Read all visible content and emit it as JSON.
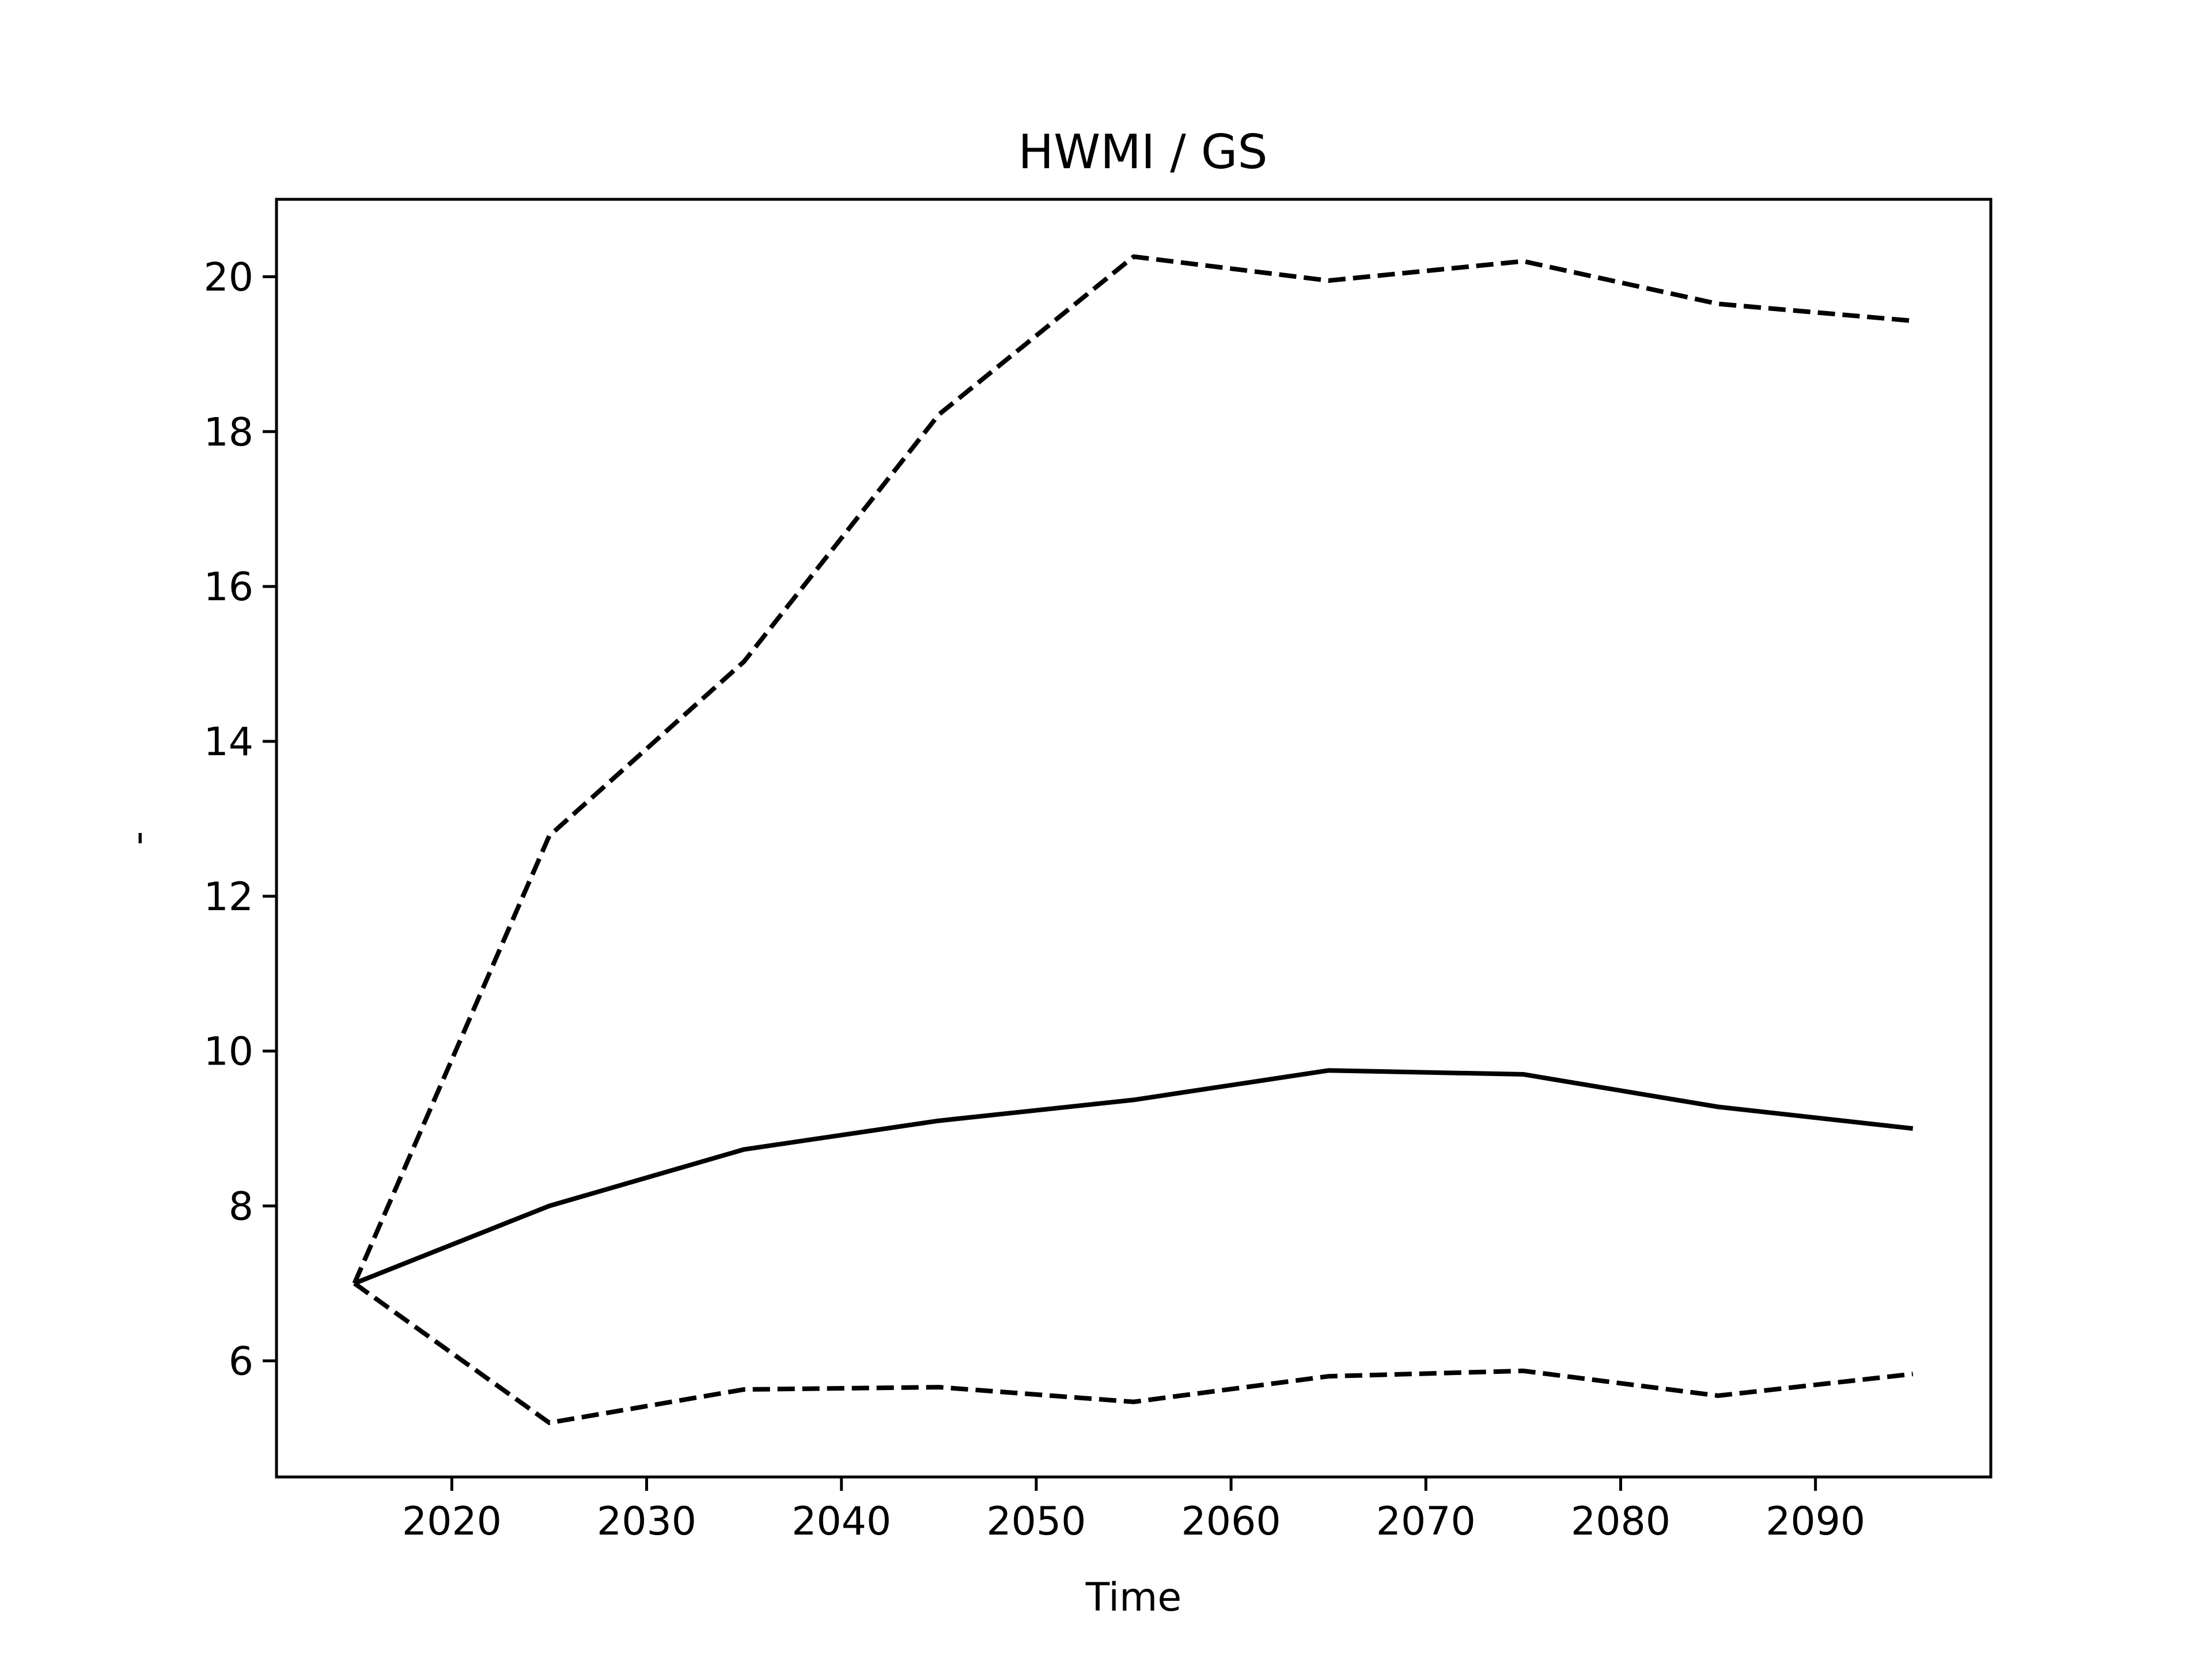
{
  "chart_data": {
    "type": "line",
    "title": "HWMI / GS",
    "xlabel": "Time",
    "ylabel": "-",
    "xlim": [
      2011,
      2099
    ],
    "ylim": [
      4.5,
      21.0
    ],
    "xticks": [
      2020,
      2030,
      2040,
      2050,
      2060,
      2070,
      2080,
      2090
    ],
    "yticks": [
      6,
      8,
      10,
      12,
      14,
      16,
      18,
      20
    ],
    "grid": false,
    "legend": "none",
    "x": [
      2015,
      2025,
      2035,
      2045,
      2055,
      2065,
      2075,
      2085,
      2095
    ],
    "series": [
      {
        "style": "solid",
        "color": "#000000",
        "values": [
          7.0,
          8.0,
          8.73,
          9.1,
          9.37,
          9.75,
          9.7,
          9.28,
          9.0
        ]
      },
      {
        "style": "dashed",
        "color": "#000000",
        "values": [
          7.0,
          12.78,
          15.03,
          18.22,
          20.26,
          19.95,
          20.2,
          19.65,
          19.43
        ]
      },
      {
        "style": "dashed",
        "color": "#000000",
        "values": [
          7.0,
          5.2,
          5.63,
          5.66,
          5.47,
          5.8,
          5.87,
          5.55,
          5.83
        ]
      }
    ]
  }
}
